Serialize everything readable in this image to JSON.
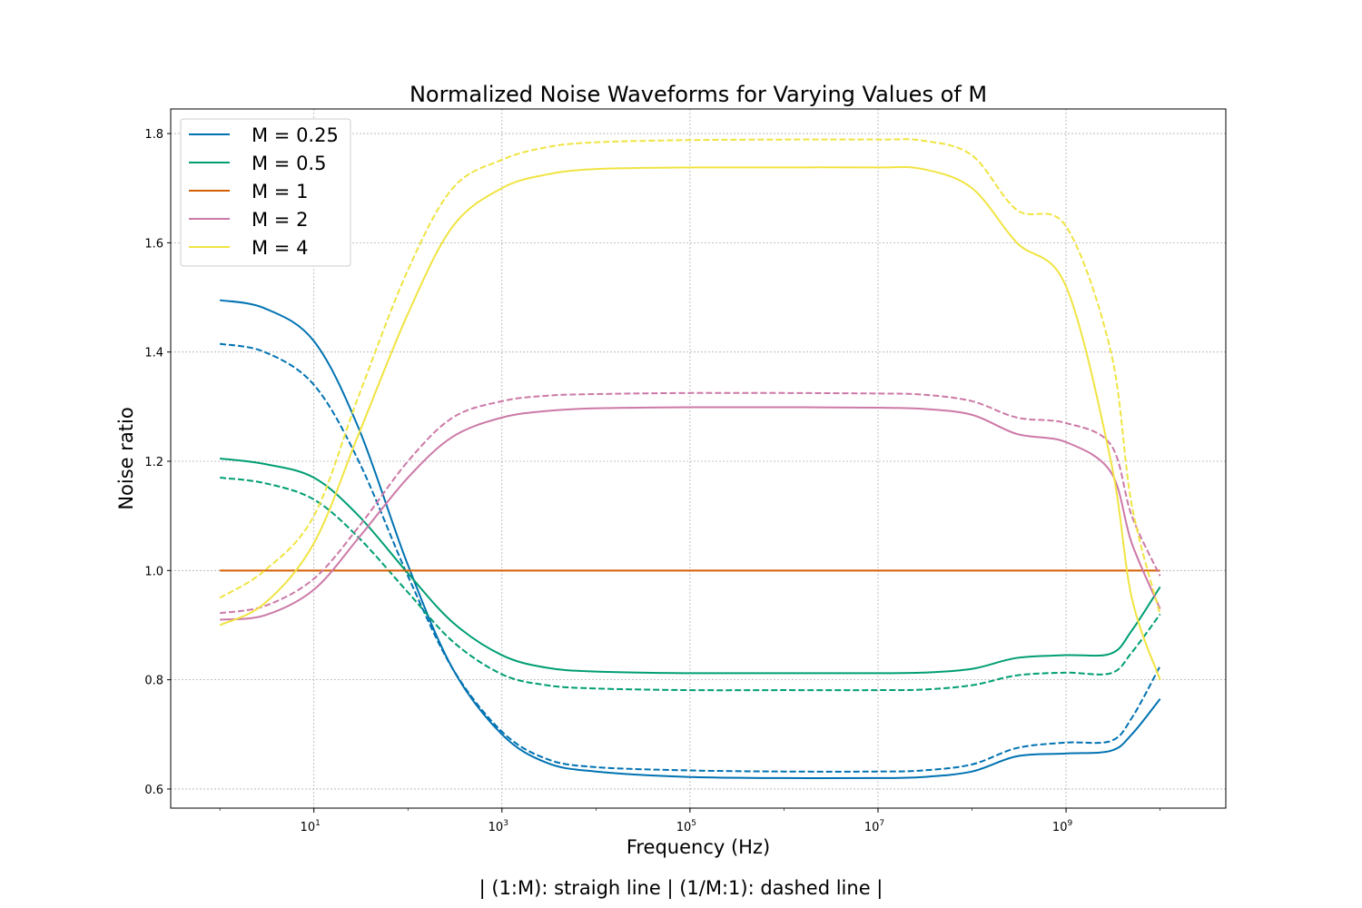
{
  "chart_data": {
    "type": "line",
    "title": "Normalized Noise Waveforms for Varying Values of M",
    "xlabel": "Frequency (Hz)",
    "ylabel": "Noise ratio",
    "caption": "| (1:M): straigh line | (1/M:1): dashed line |",
    "x_scale": "log",
    "xlim": [
      0.3,
      50000000000
    ],
    "ylim": [
      0.565,
      1.845
    ],
    "grid": true,
    "legend_position": "upper-left",
    "x_ticks": [
      {
        "value": 10,
        "base": "10",
        "exp": "1"
      },
      {
        "value": 1000,
        "base": "10",
        "exp": "3"
      },
      {
        "value": 100000,
        "base": "10",
        "exp": "5"
      },
      {
        "value": 10000000,
        "base": "10",
        "exp": "7"
      },
      {
        "value": 1000000000,
        "base": "10",
        "exp": "9"
      }
    ],
    "y_ticks": [
      {
        "value": 0.6,
        "label": "0.6"
      },
      {
        "value": 0.8,
        "label": "0.8"
      },
      {
        "value": 1.0,
        "label": "1.0"
      },
      {
        "value": 1.2,
        "label": "1.2"
      },
      {
        "value": 1.4,
        "label": "1.4"
      },
      {
        "value": 1.6,
        "label": "1.6"
      },
      {
        "value": 1.8,
        "label": "1.8"
      }
    ],
    "x": [
      1,
      3,
      10,
      30,
      100,
      300,
      1000,
      3000,
      10000,
      100000,
      1000000,
      10000000,
      30000000,
      100000000,
      300000000,
      1000000000,
      3000000000,
      5000000000,
      10000000000
    ],
    "series": [
      {
        "name": "M = 0.25",
        "color": "#0072b2",
        "solid": [
          1.495,
          1.48,
          1.42,
          1.26,
          1.01,
          0.82,
          0.7,
          0.648,
          0.632,
          0.622,
          0.62,
          0.62,
          0.622,
          0.632,
          0.66,
          0.665,
          0.67,
          0.7,
          0.765
        ],
        "dashed": [
          1.415,
          1.4,
          1.34,
          1.2,
          0.99,
          0.82,
          0.705,
          0.655,
          0.64,
          0.634,
          0.632,
          0.632,
          0.634,
          0.645,
          0.675,
          0.685,
          0.688,
          0.73,
          0.825
        ]
      },
      {
        "name": "M = 0.5",
        "color": "#009e73",
        "solid": [
          1.205,
          1.195,
          1.17,
          1.1,
          0.995,
          0.905,
          0.845,
          0.822,
          0.815,
          0.812,
          0.812,
          0.812,
          0.813,
          0.82,
          0.84,
          0.845,
          0.848,
          0.89,
          0.97
        ],
        "dashed": [
          1.17,
          1.16,
          1.13,
          1.06,
          0.96,
          0.87,
          0.81,
          0.79,
          0.784,
          0.781,
          0.781,
          0.781,
          0.782,
          0.79,
          0.808,
          0.813,
          0.812,
          0.85,
          0.92
        ]
      },
      {
        "name": "M = 1",
        "color": "#d55e00",
        "solid": [
          1.0,
          1.0,
          1.0,
          1.0,
          1.0,
          1.0,
          1.0,
          1.0,
          1.0,
          1.0,
          1.0,
          1.0,
          1.0,
          1.0,
          1.0,
          1.0,
          1.0,
          1.0,
          1.0
        ],
        "dashed": []
      },
      {
        "name": "M = 2",
        "color": "#cc79a7",
        "solid": [
          0.91,
          0.918,
          0.965,
          1.06,
          1.17,
          1.245,
          1.28,
          1.292,
          1.297,
          1.299,
          1.299,
          1.298,
          1.296,
          1.285,
          1.25,
          1.235,
          1.18,
          1.05,
          0.93
        ],
        "dashed": [
          0.922,
          0.935,
          0.985,
          1.08,
          1.2,
          1.28,
          1.31,
          1.32,
          1.323,
          1.325,
          1.325,
          1.324,
          1.322,
          1.31,
          1.28,
          1.27,
          1.23,
          1.1,
          0.99
        ]
      },
      {
        "name": "M = 4",
        "color": "#f0e442",
        "solid": [
          0.9,
          0.94,
          1.05,
          1.25,
          1.47,
          1.63,
          1.7,
          1.725,
          1.735,
          1.738,
          1.738,
          1.738,
          1.735,
          1.7,
          1.6,
          1.52,
          1.2,
          0.95,
          0.8
        ],
        "dashed": [
          0.95,
          1.0,
          1.1,
          1.32,
          1.55,
          1.7,
          1.752,
          1.775,
          1.784,
          1.788,
          1.789,
          1.789,
          1.787,
          1.76,
          1.66,
          1.63,
          1.4,
          1.12,
          0.92
        ]
      }
    ]
  }
}
